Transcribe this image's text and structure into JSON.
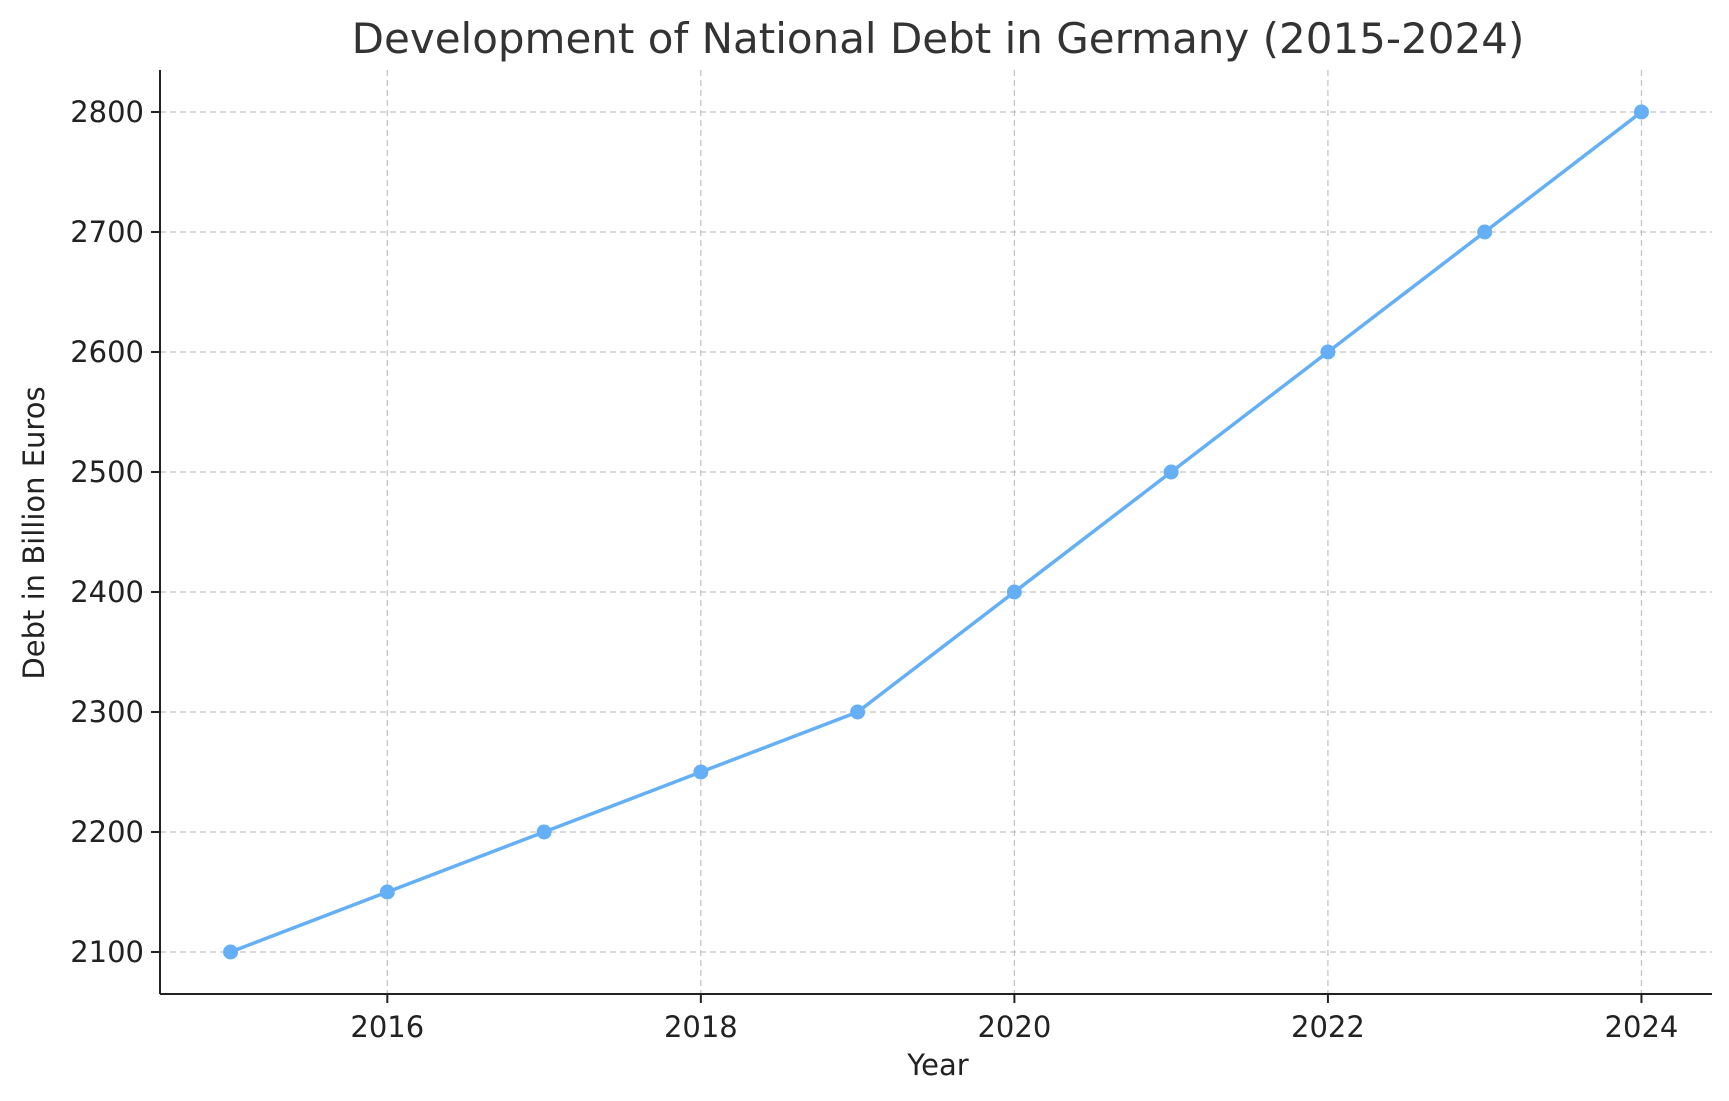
{
  "chart_data": {
    "type": "line",
    "title": "Development of National Debt in Germany (2015-2024)",
    "xlabel": "Year",
    "ylabel": "Debt in Billion Euros",
    "x": [
      2015,
      2016,
      2017,
      2018,
      2019,
      2020,
      2021,
      2022,
      2023,
      2024
    ],
    "series": [
      {
        "values": [
          2100,
          2150,
          2200,
          2250,
          2300,
          2400,
          2500,
          2600,
          2700,
          2800
        ],
        "color": "#64aff5",
        "marker": "circle"
      }
    ],
    "xlim": [
      2014.55,
      2024.45
    ],
    "ylim": [
      2065,
      2835
    ],
    "xticks": [
      2016,
      2018,
      2020,
      2022,
      2024
    ],
    "xtick_labels": [
      "2016",
      "2018",
      "2020",
      "2022",
      "2024"
    ],
    "yticks": [
      2100,
      2200,
      2300,
      2400,
      2500,
      2600,
      2700,
      2800
    ],
    "ytick_labels": [
      "2100",
      "2200",
      "2300",
      "2400",
      "2500",
      "2600",
      "2700",
      "2800"
    ],
    "grid": true,
    "grid_style": "dashed",
    "legend": "none"
  }
}
